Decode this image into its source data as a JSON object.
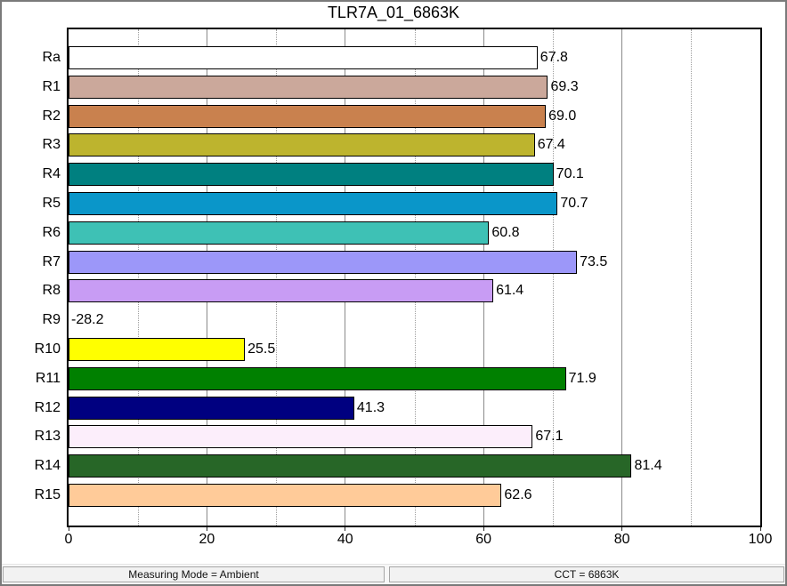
{
  "window": {
    "title": "TLR7A_01_6863K",
    "background": "#ffffff",
    "border_color": "#7a7a7a"
  },
  "status_bar": {
    "left_panel": "Measuring Mode = Ambient",
    "right_panel": "CCT = 6863K"
  },
  "chart_data": {
    "type": "bar",
    "orientation": "horizontal",
    "title": "TLR7A_01_6863K",
    "categories": [
      "Ra",
      "R1",
      "R2",
      "R3",
      "R4",
      "R5",
      "R6",
      "R7",
      "R8",
      "R9",
      "R10",
      "R11",
      "R12",
      "R13",
      "R14",
      "R15"
    ],
    "values": [
      67.8,
      69.3,
      69.0,
      67.4,
      70.1,
      70.7,
      60.8,
      73.5,
      61.4,
      -28.2,
      25.5,
      71.9,
      41.3,
      67.1,
      81.4,
      62.6
    ],
    "value_labels": [
      "67.8",
      "69.3",
      "69.0",
      "67.4",
      "70.1",
      "70.7",
      "60.8",
      "73.5",
      "61.4",
      "-28.2",
      "25.5",
      "71.9",
      "41.3",
      "67.1",
      "81.4",
      "62.6"
    ],
    "bar_colors": [
      "#FFFFFF",
      "#CBA89B",
      "#C9814E",
      "#BDB42E",
      "#008080",
      "#0A96C9",
      "#3EC1B5",
      "#9C97F9",
      "#C89CF4",
      null,
      "#FFFF00",
      "#008000",
      "#000080",
      "#FCEEFB",
      "#276627",
      "#FFCB99"
    ],
    "bar_border_color": "#000000",
    "xlabel": "",
    "ylabel": "",
    "xlim": [
      0,
      100
    ],
    "x_major_ticks": [
      0,
      20,
      40,
      60,
      80,
      100
    ],
    "x_minor_ticks": [
      10,
      30,
      50,
      70,
      90
    ],
    "grid": {
      "major_style": "solid",
      "major_color": "#8a8a8a",
      "minor_style": "dotted",
      "minor_color": "#9f9f9f"
    },
    "legend": "none"
  }
}
